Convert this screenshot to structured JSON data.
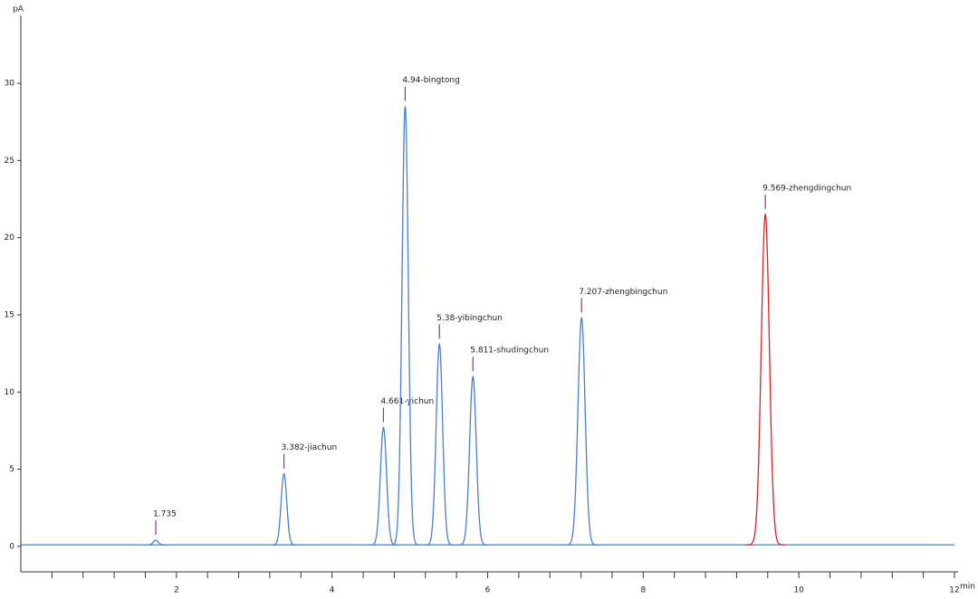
{
  "chart_data": {
    "type": "chromatogram",
    "y_label": "pA",
    "x_label": "min",
    "xlim": [
      0,
      12
    ],
    "ylim": [
      -1.65,
      34.4
    ],
    "xticks": [
      2,
      4,
      6,
      8,
      10,
      12
    ],
    "xminorticks": [
      0.4,
      0.8,
      1.2,
      1.6,
      2.4,
      2.8,
      3.2,
      3.6,
      4.4,
      4.8,
      5.2,
      5.6,
      6.4,
      6.8,
      7.2,
      7.6,
      8.4,
      8.8,
      9.2,
      9.6,
      10.4,
      10.8,
      11.2,
      11.6
    ],
    "yticks": [
      0,
      5,
      10,
      15,
      20,
      25,
      30
    ],
    "baseline": 0.1,
    "baseline_color": "#4a7fd0",
    "peaks": [
      {
        "label": "1.735",
        "x": 1.735,
        "height": 0.4,
        "color": "#4a7fd0"
      },
      {
        "label": "3.382-jiachun",
        "x": 3.382,
        "height": 4.7,
        "color": "#4a7fd0"
      },
      {
        "label": "4.661-yichun",
        "x": 4.661,
        "height": 7.7,
        "color": "#4a7fd0"
      },
      {
        "label": "4.94-bingtong",
        "x": 4.94,
        "height": 28.5,
        "color": "#4a7fd0"
      },
      {
        "label": "5.38-yibingchun",
        "x": 5.38,
        "height": 13.1,
        "color": "#4a7fd0"
      },
      {
        "label": "5.811-shudingchun",
        "x": 5.811,
        "height": 11.0,
        "color": "#4a7fd0"
      },
      {
        "label": "7.207-zhengbingchun",
        "x": 7.207,
        "height": 14.8,
        "color": "#4a7fd0"
      },
      {
        "label": "9.569-zhengdingchun",
        "x": 9.569,
        "height": 21.5,
        "color": "#e02020"
      }
    ]
  }
}
